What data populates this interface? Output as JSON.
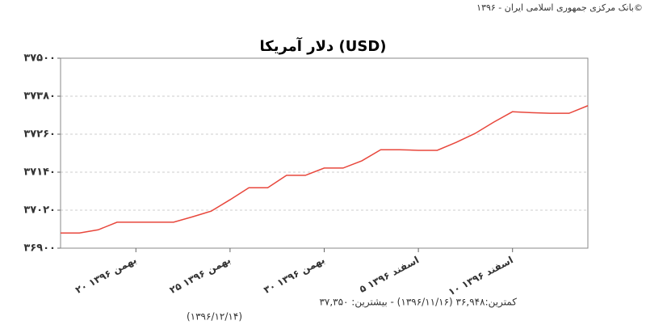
{
  "chart_data": {
    "type": "line",
    "source": "بانک مرکزی جمهوری اسلامی ایران - ۱۳۹۶©",
    "title": "دلار آمریکا (USD)",
    "footer": [
      "کمترین:۳۶,۹۴۸ (۱۳۹۶/۱۱/۱۶) - بیشترین: ۳۷,۳۵۰",
      "(۱۳۹۶/۱۲/۱۴)"
    ],
    "categories": [
      null,
      null,
      null,
      null,
      "۲۰ بهمن ۱۳۹۶",
      null,
      null,
      null,
      null,
      "۲۵ بهمن ۱۳۹۶",
      null,
      null,
      null,
      null,
      "۳۰ بهمن ۱۳۹۶",
      null,
      null,
      null,
      null,
      "۵ اسفند ۱۳۹۶",
      null,
      null,
      null,
      null,
      "۱۰ اسفند ۱۳۹۶",
      null,
      null,
      null,
      null
    ],
    "series": [
      {
        "name": "USD",
        "color": "#e8473c",
        "values": [
          36948,
          36948,
          36958,
          36982,
          36982,
          36982,
          36982,
          36999,
          37017,
          37053,
          37091,
          37091,
          37130,
          37130,
          37153,
          37153,
          37176,
          37211,
          37211,
          37209,
          37209,
          37234,
          37262,
          37298,
          37331,
          37328,
          37326,
          37326,
          37350
        ]
      }
    ],
    "ylim": [
      36900,
      37500
    ],
    "yticks": [
      {
        "value": 36900,
        "label": "۳۶۹۰۰"
      },
      {
        "value": 37020,
        "label": "۳۷۰۲۰"
      },
      {
        "value": 37140,
        "label": "۳۷۱۴۰"
      },
      {
        "value": 37260,
        "label": "۳۷۲۶۰"
      },
      {
        "value": 37380,
        "label": "۳۷۳۸۰"
      },
      {
        "value": 37500,
        "label": "۳۷۵۰۰"
      }
    ],
    "grid": true
  }
}
